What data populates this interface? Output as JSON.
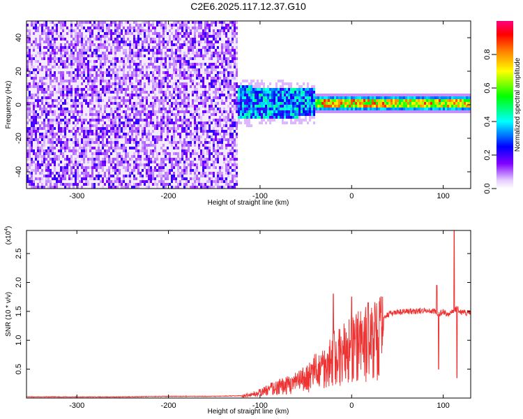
{
  "title": "C2E6.2025.117.12.37.G10",
  "chart_data": [
    {
      "type": "heatmap",
      "xlabel": "Height of straight line (km)",
      "ylabel": "Frequency (Hz)",
      "xlim": [
        -355,
        130
      ],
      "ylim": [
        -50,
        50
      ],
      "x_ticks": [
        -300,
        -200,
        -100,
        0,
        100
      ],
      "y_ticks": [
        -40,
        -20,
        0,
        20,
        40
      ],
      "colorbar": {
        "label": "Normalized spectral amplitude",
        "range": [
          0,
          1
        ],
        "ticks": [
          0.0,
          0.2,
          0.4,
          0.6,
          0.8
        ],
        "colors": [
          "#ffffff",
          "#e5ccff",
          "#7f00ff",
          "#0000ff",
          "#00ffff",
          "#00ff00",
          "#ffff00",
          "#ff7f00",
          "#ff0000",
          "#ff0080"
        ]
      },
      "regions": [
        {
          "x_range": [
            -355,
            -125
          ],
          "freq_range": [
            -50,
            50
          ],
          "amplitude": "0.05-0.3 (noise)"
        },
        {
          "x_range": [
            -125,
            -40
          ],
          "freq_range": [
            -10,
            10
          ],
          "amplitude": "0.2-0.5"
        },
        {
          "x_range": [
            -40,
            130
          ],
          "freq_range": [
            0,
            3
          ],
          "amplitude": "0.5-1.0"
        }
      ]
    },
    {
      "type": "line",
      "xlabel": "Height of straight line (km)",
      "ylabel": "SNR (10 * v/v)",
      "y_multiplier": "(x10",
      "y_multiplier_exp": "4",
      "xlim": [
        -355,
        130
      ],
      "ylim": [
        0,
        2.9
      ],
      "x_ticks": [
        -300,
        -200,
        -100,
        0,
        100
      ],
      "y_ticks": [
        0.5,
        1.0,
        1.5,
        2.0,
        2.5
      ],
      "y_tick_labels": [
        "0.5",
        "1.0",
        "1.5",
        "2.0",
        "2.5"
      ],
      "line_color": "#ee3333",
      "x": [
        -355,
        -300,
        -250,
        -200,
        -150,
        -120,
        -100,
        -90,
        -80,
        -70,
        -60,
        -50,
        -40,
        -30,
        -20,
        -10,
        0,
        10,
        20,
        30,
        40,
        50,
        60,
        70,
        80,
        90,
        95,
        100,
        105,
        110,
        115,
        120,
        130
      ],
      "y": [
        0.02,
        0.02,
        0.02,
        0.03,
        0.03,
        0.04,
        0.12,
        0.2,
        0.25,
        0.3,
        0.35,
        0.45,
        0.6,
        0.75,
        0.9,
        1.0,
        1.1,
        1.2,
        1.3,
        1.38,
        1.45,
        1.48,
        1.5,
        1.5,
        1.52,
        1.5,
        1.45,
        1.5,
        1.45,
        1.5,
        1.55,
        1.48,
        1.47
      ],
      "spikes": [
        {
          "x": -20,
          "y": 1.8
        },
        {
          "x": 0,
          "y": 1.75
        },
        {
          "x": 18,
          "y": 1.65
        },
        {
          "x": 93,
          "y": 1.95
        },
        {
          "x": 95,
          "y": 0.5
        },
        {
          "x": 112,
          "y": 2.9
        },
        {
          "x": 115,
          "y": 0.35
        }
      ]
    }
  ]
}
